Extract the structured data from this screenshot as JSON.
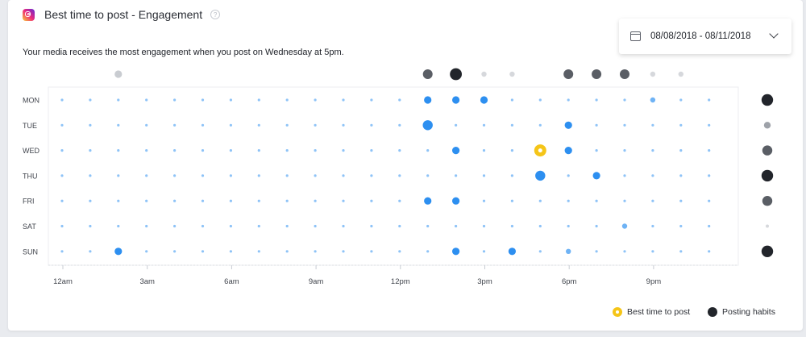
{
  "header": {
    "title": "Best time to post - Engagement",
    "help_symbol": "?"
  },
  "subtitle": "Your media receives the most engagement when you post on Wednesday at 5pm.",
  "date_range": "08/08/2018 - 08/11/2018",
  "colors": {
    "blue": "#2d8ff0",
    "best": "#f5c518",
    "habit_dark": "#22252b"
  },
  "legend": {
    "best_label": "Best time to post",
    "habits_label": "Posting habits"
  },
  "chart_data": {
    "type": "scatter",
    "days": [
      "MON",
      "TUE",
      "WED",
      "THU",
      "FRI",
      "SAT",
      "SUN"
    ],
    "hour_tick_labels": [
      "12am",
      "3am",
      "6am",
      "9am",
      "12pm",
      "3pm",
      "6pm",
      "9pm"
    ],
    "hour_tick_hours": [
      0,
      3,
      6,
      9,
      12,
      15,
      18,
      21
    ],
    "hours_count": 24,
    "engagement_grid": [
      [
        0,
        0,
        0,
        0,
        0,
        0,
        0,
        0,
        0,
        0,
        0,
        0,
        0,
        2,
        2,
        2,
        0,
        0,
        0,
        0,
        0,
        1,
        0,
        0
      ],
      [
        0,
        0,
        0,
        0,
        0,
        0,
        0,
        0,
        0,
        0,
        0,
        0,
        0,
        3,
        0,
        0,
        0,
        0,
        2,
        0,
        0,
        0,
        0,
        0
      ],
      [
        0,
        0,
        0,
        0,
        0,
        0,
        0,
        0,
        0,
        0,
        0,
        0,
        0,
        0,
        2,
        0,
        0,
        4,
        2,
        0,
        0,
        0,
        0,
        0
      ],
      [
        0,
        0,
        0,
        0,
        0,
        0,
        0,
        0,
        0,
        0,
        0,
        0,
        0,
        0,
        0,
        0,
        0,
        3,
        0,
        2,
        0,
        0,
        0,
        0
      ],
      [
        0,
        0,
        0,
        0,
        0,
        0,
        0,
        0,
        0,
        0,
        0,
        0,
        0,
        2,
        2,
        0,
        0,
        0,
        0,
        0,
        0,
        0,
        0,
        0
      ],
      [
        0,
        0,
        0,
        0,
        0,
        0,
        0,
        0,
        0,
        0,
        0,
        0,
        0,
        0,
        0,
        0,
        0,
        0,
        0,
        0,
        1,
        0,
        0,
        0
      ],
      [
        0,
        0,
        2,
        0,
        0,
        0,
        0,
        0,
        0,
        0,
        0,
        0,
        0,
        0,
        2,
        0,
        2,
        0,
        1,
        0,
        0,
        0,
        0,
        0
      ]
    ],
    "best_time": {
      "day": "WED",
      "hour": 17
    },
    "hour_habits": [
      0,
      0,
      2,
      0,
      0,
      0,
      0,
      0,
      0,
      0,
      0,
      0,
      0,
      5,
      6,
      1,
      1,
      0,
      5,
      5,
      5,
      1,
      1,
      0
    ],
    "day_habits": [
      6,
      3,
      5,
      6,
      5,
      1,
      6
    ]
  }
}
